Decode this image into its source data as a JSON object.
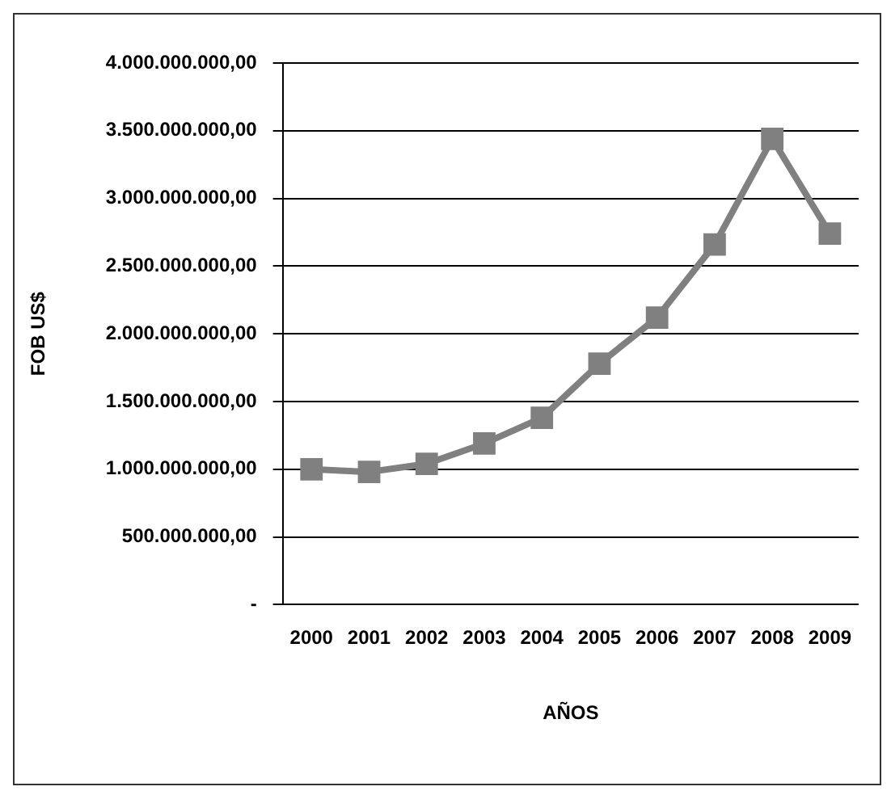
{
  "chart_data": {
    "type": "line",
    "xlabel": "AÑOS",
    "ylabel": "FOB US$",
    "categories": [
      "2000",
      "2001",
      "2002",
      "2003",
      "2004",
      "2005",
      "2006",
      "2007",
      "2008",
      "2009"
    ],
    "series": [
      {
        "color": "#808080",
        "values": [
          1000000000,
          980000000,
          1040000000,
          1190000000,
          1380000000,
          1780000000,
          2120000000,
          2660000000,
          3440000000,
          2740000000
        ]
      }
    ],
    "ylim": [
      0,
      4000000000
    ],
    "yticks": [
      {
        "value": 0,
        "label": "-"
      },
      {
        "value": 500000000,
        "label": "500.000.000,00"
      },
      {
        "value": 1000000000,
        "label": "1.000.000.000,00"
      },
      {
        "value": 1500000000,
        "label": "1.500.000.000,00"
      },
      {
        "value": 2000000000,
        "label": "2.000.000.000,00"
      },
      {
        "value": 2500000000,
        "label": "2.500.000.000,00"
      },
      {
        "value": 3000000000,
        "label": "3.000.000.000,00"
      },
      {
        "value": 3500000000,
        "label": "3.500.000.000,00"
      },
      {
        "value": 4000000000,
        "label": "4.000.000.000,00"
      }
    ],
    "grid": "y",
    "legend": false,
    "marker": "square",
    "line_style": "solid"
  }
}
